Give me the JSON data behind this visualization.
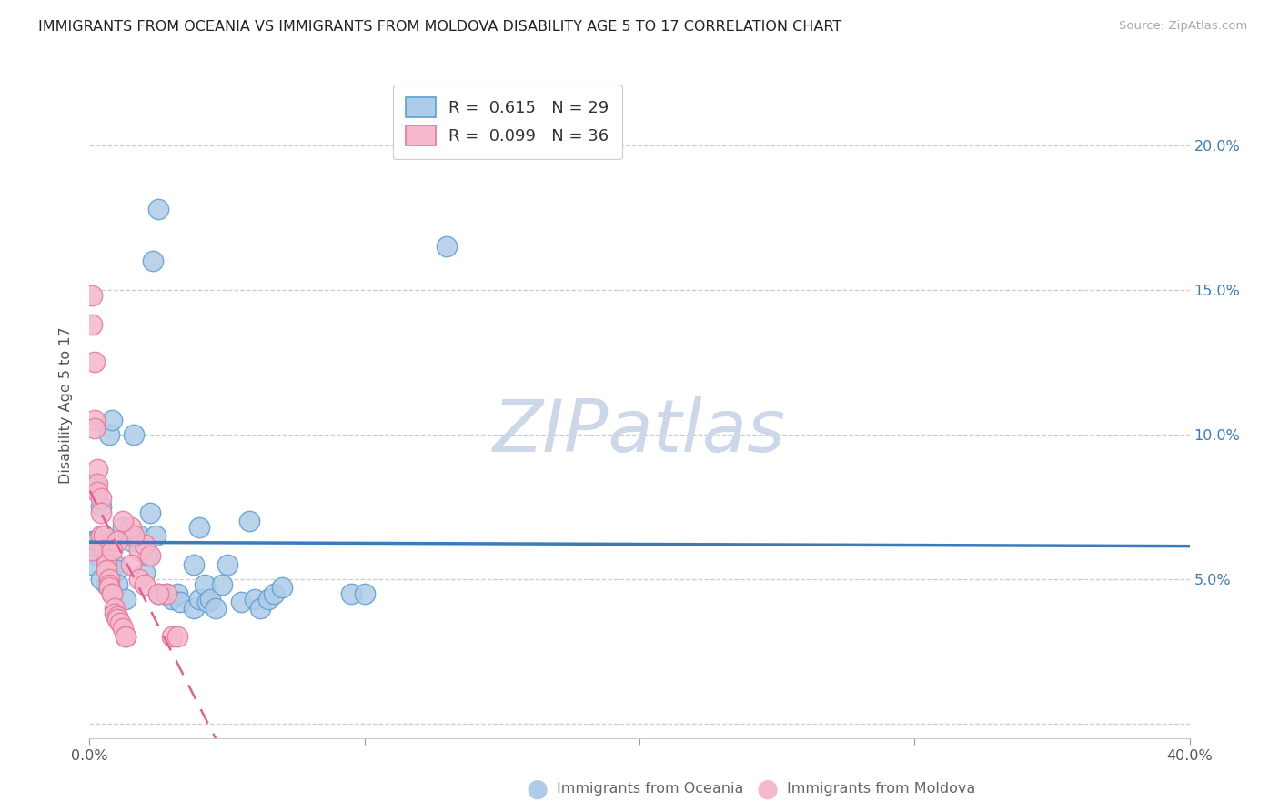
{
  "title": "IMMIGRANTS FROM OCEANIA VS IMMIGRANTS FROM MOLDOVA DISABILITY AGE 5 TO 17 CORRELATION CHART",
  "source": "Source: ZipAtlas.com",
  "ylabel": "Disability Age 5 to 17",
  "xlim": [
    0.0,
    0.4
  ],
  "ylim": [
    -0.005,
    0.225
  ],
  "x_ticks": [
    0.0,
    0.1,
    0.2,
    0.3,
    0.4
  ],
  "x_tick_labels": [
    "0.0%",
    "",
    "",
    "",
    "40.0%"
  ],
  "y_ticks": [
    0.0,
    0.05,
    0.1,
    0.15,
    0.2
  ],
  "y_tick_labels": [
    "",
    "5.0%",
    "10.0%",
    "15.0%",
    "20.0%"
  ],
  "oceania_color": "#aecce8",
  "moldova_color": "#f5b8cc",
  "oceania_edge": "#5a9fd4",
  "moldova_edge": "#e8789a",
  "oceania_line_color": "#3a7bbf",
  "moldova_line_color": "#e06090",
  "watermark": "ZIPatlas",
  "watermark_color": "#ccd8ea",
  "oceania_points": [
    [
      0.001,
      0.063
    ],
    [
      0.002,
      0.083
    ],
    [
      0.002,
      0.063
    ],
    [
      0.003,
      0.058
    ],
    [
      0.004,
      0.075
    ],
    [
      0.005,
      0.058
    ],
    [
      0.006,
      0.048
    ],
    [
      0.007,
      0.1
    ],
    [
      0.008,
      0.105
    ],
    [
      0.009,
      0.055
    ],
    [
      0.01,
      0.053
    ],
    [
      0.012,
      0.068
    ],
    [
      0.014,
      0.065
    ],
    [
      0.015,
      0.063
    ],
    [
      0.016,
      0.1
    ],
    [
      0.018,
      0.065
    ],
    [
      0.02,
      0.052
    ],
    [
      0.021,
      0.058
    ],
    [
      0.022,
      0.073
    ],
    [
      0.024,
      0.065
    ],
    [
      0.001,
      0.055
    ],
    [
      0.003,
      0.063
    ],
    [
      0.004,
      0.05
    ],
    [
      0.005,
      0.065
    ],
    [
      0.01,
      0.048
    ],
    [
      0.013,
      0.043
    ],
    [
      0.023,
      0.16
    ],
    [
      0.025,
      0.045
    ],
    [
      0.028,
      0.045
    ],
    [
      0.03,
      0.043
    ],
    [
      0.032,
      0.045
    ],
    [
      0.033,
      0.042
    ],
    [
      0.038,
      0.055
    ],
    [
      0.038,
      0.04
    ],
    [
      0.04,
      0.068
    ],
    [
      0.04,
      0.043
    ],
    [
      0.042,
      0.048
    ],
    [
      0.043,
      0.042
    ],
    [
      0.044,
      0.043
    ],
    [
      0.046,
      0.04
    ],
    [
      0.048,
      0.048
    ],
    [
      0.05,
      0.055
    ],
    [
      0.055,
      0.042
    ],
    [
      0.058,
      0.07
    ],
    [
      0.06,
      0.043
    ],
    [
      0.062,
      0.04
    ],
    [
      0.065,
      0.043
    ],
    [
      0.067,
      0.045
    ],
    [
      0.07,
      0.047
    ],
    [
      0.025,
      0.178
    ],
    [
      0.095,
      0.045
    ],
    [
      0.1,
      0.045
    ],
    [
      0.13,
      0.165
    ]
  ],
  "moldova_points": [
    [
      0.001,
      0.148
    ],
    [
      0.001,
      0.138
    ],
    [
      0.002,
      0.125
    ],
    [
      0.002,
      0.105
    ],
    [
      0.002,
      0.102
    ],
    [
      0.003,
      0.088
    ],
    [
      0.003,
      0.083
    ],
    [
      0.003,
      0.08
    ],
    [
      0.004,
      0.078
    ],
    [
      0.004,
      0.073
    ],
    [
      0.004,
      0.065
    ],
    [
      0.005,
      0.062
    ],
    [
      0.005,
      0.065
    ],
    [
      0.005,
      0.06
    ],
    [
      0.006,
      0.057
    ],
    [
      0.006,
      0.055
    ],
    [
      0.006,
      0.053
    ],
    [
      0.007,
      0.05
    ],
    [
      0.007,
      0.048
    ],
    [
      0.007,
      0.047
    ],
    [
      0.008,
      0.045
    ],
    [
      0.008,
      0.045
    ],
    [
      0.009,
      0.04
    ],
    [
      0.009,
      0.038
    ],
    [
      0.01,
      0.037
    ],
    [
      0.01,
      0.036
    ],
    [
      0.011,
      0.035
    ],
    [
      0.012,
      0.033
    ],
    [
      0.013,
      0.03
    ],
    [
      0.013,
      0.03
    ],
    [
      0.018,
      0.06
    ],
    [
      0.02,
      0.062
    ],
    [
      0.022,
      0.058
    ],
    [
      0.028,
      0.045
    ],
    [
      0.03,
      0.03
    ],
    [
      0.032,
      0.03
    ],
    [
      0.001,
      0.06
    ],
    [
      0.015,
      0.068
    ],
    [
      0.016,
      0.065
    ],
    [
      0.012,
      0.07
    ],
    [
      0.01,
      0.063
    ],
    [
      0.008,
      0.06
    ],
    [
      0.015,
      0.055
    ],
    [
      0.018,
      0.05
    ],
    [
      0.02,
      0.048
    ],
    [
      0.025,
      0.045
    ]
  ]
}
